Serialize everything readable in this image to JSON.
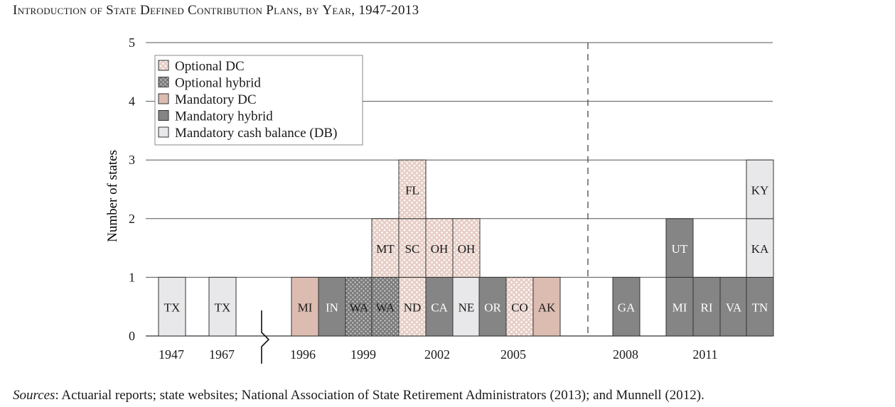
{
  "title": "Introduction of State Defined Contribution Plans, by Year, 1947-2013",
  "source": {
    "lead": "Sources",
    "text": ": Actuarial reports; state websites; National Association of State Retirement Administrators (2013); and Munnell (2012)."
  },
  "colors": {
    "optional_dc": "#e7c9bf",
    "optional_hybrid": "#8c8c8c",
    "mandatory_dc": "#dcbcb1",
    "mandatory_hybrid": "#858585",
    "mandatory_cash_balance": "#e8e8ea"
  },
  "chart_data": {
    "type": "bar",
    "title": "Introduction of State Defined Contribution Plans, by Year, 1947-2013",
    "xlabel": "",
    "ylabel": "Number of states",
    "ylim": [
      0,
      5
    ],
    "yticks": [
      0,
      1,
      2,
      3,
      4,
      5
    ],
    "grid": true,
    "legend_position": "top-left",
    "axis_break_after": "1967",
    "divider_after": "2006",
    "legend": [
      {
        "key": "optional_dc",
        "label": "Optional DC"
      },
      {
        "key": "optional_hybrid",
        "label": "Optional hybrid"
      },
      {
        "key": "mandatory_dc",
        "label": "Mandatory DC"
      },
      {
        "key": "mandatory_hybrid",
        "label": "Mandatory hybrid"
      },
      {
        "key": "mandatory_cash_balance",
        "label": "Mandatory cash balance (DB)"
      }
    ],
    "x_tick_labels": [
      "1947",
      "1967",
      "1996",
      "1999",
      "2002",
      "2005",
      "2008",
      "2011"
    ],
    "columns": [
      {
        "year": "1947",
        "stack": [
          {
            "state": "TX",
            "type": "mandatory_cash_balance"
          }
        ]
      },
      {
        "year": "1967",
        "stack": [
          {
            "state": "TX",
            "type": "mandatory_cash_balance"
          }
        ]
      },
      {
        "year": "1996",
        "stack": [
          {
            "state": "MI",
            "type": "mandatory_dc"
          }
        ]
      },
      {
        "year": "1997",
        "stack": [
          {
            "state": "IN",
            "type": "mandatory_hybrid"
          }
        ]
      },
      {
        "year": "1998",
        "stack": [
          {
            "state": "WA",
            "type": "optional_hybrid"
          }
        ]
      },
      {
        "year": "1999",
        "stack": [
          {
            "state": "WA",
            "type": "optional_hybrid"
          },
          {
            "state": "MT",
            "type": "optional_dc"
          }
        ]
      },
      {
        "year": "2000",
        "stack": [
          {
            "state": "ND",
            "type": "optional_dc"
          },
          {
            "state": "SC",
            "type": "optional_dc"
          },
          {
            "state": "FL",
            "type": "optional_dc"
          }
        ]
      },
      {
        "year": "2001",
        "stack": [
          {
            "state": "CA",
            "type": "mandatory_hybrid"
          },
          {
            "state": "OH",
            "type": "optional_dc"
          }
        ]
      },
      {
        "year": "2002",
        "stack": [
          {
            "state": "NE",
            "type": "mandatory_cash_balance"
          },
          {
            "state": "OH",
            "type": "optional_dc"
          }
        ]
      },
      {
        "year": "2003",
        "stack": [
          {
            "state": "OR",
            "type": "mandatory_hybrid"
          }
        ]
      },
      {
        "year": "2004",
        "stack": [
          {
            "state": "CO",
            "type": "optional_dc"
          }
        ]
      },
      {
        "year": "2005",
        "stack": [
          {
            "state": "AK",
            "type": "mandatory_dc"
          }
        ]
      },
      {
        "year": "2006",
        "stack": []
      },
      {
        "year": "2008",
        "stack": [
          {
            "state": "GA",
            "type": "mandatory_hybrid"
          }
        ]
      },
      {
        "year": "2009",
        "stack": []
      },
      {
        "year": "2010",
        "stack": [
          {
            "state": "MI",
            "type": "mandatory_hybrid"
          },
          {
            "state": "UT",
            "type": "mandatory_hybrid"
          }
        ]
      },
      {
        "year": "2011",
        "stack": [
          {
            "state": "RI",
            "type": "mandatory_hybrid"
          }
        ]
      },
      {
        "year": "2012",
        "stack": [
          {
            "state": "VA",
            "type": "mandatory_hybrid"
          }
        ]
      },
      {
        "year": "2013",
        "stack": [
          {
            "state": "TN",
            "type": "mandatory_hybrid"
          },
          {
            "state": "KA",
            "type": "mandatory_cash_balance"
          },
          {
            "state": "KY",
            "type": "mandatory_cash_balance"
          }
        ]
      }
    ]
  }
}
